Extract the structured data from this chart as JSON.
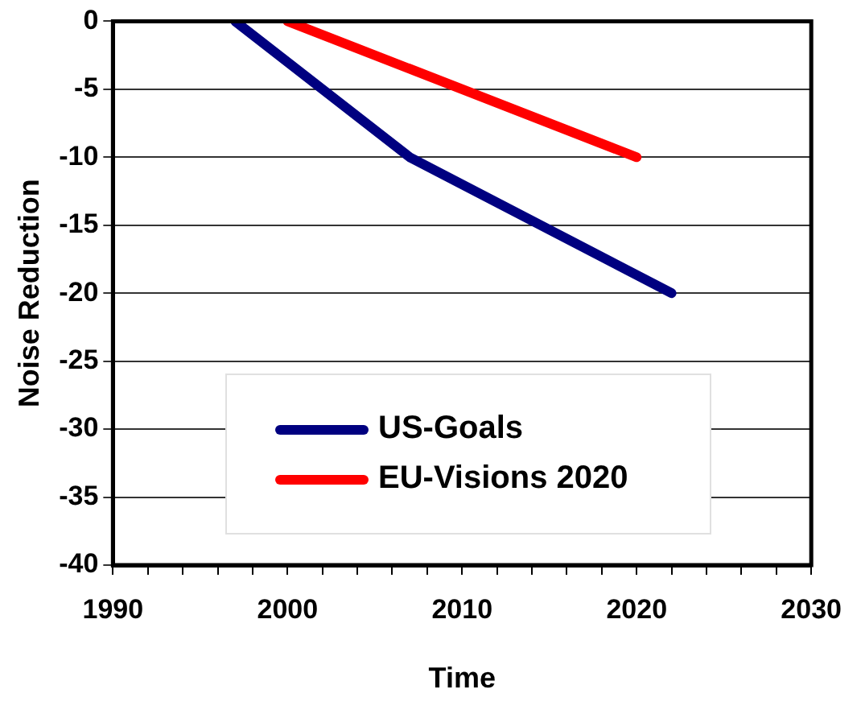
{
  "chart_data": {
    "type": "line",
    "xlabel": "Time",
    "ylabel": "Noise Reduction",
    "xlim": [
      1990,
      2030
    ],
    "ylim": [
      -40,
      0
    ],
    "xticks": [
      1990,
      {
        "value": 1992,
        "label": null
      },
      {
        "value": 1994,
        "label": null
      },
      {
        "value": 1996,
        "label": null
      },
      {
        "value": 1998,
        "label": null
      },
      2000,
      {
        "value": 2002,
        "label": null
      },
      {
        "value": 2004,
        "label": null
      },
      {
        "value": 2006,
        "label": null
      },
      {
        "value": 2008,
        "label": null
      },
      2010,
      {
        "value": 2012,
        "label": null
      },
      {
        "value": 2014,
        "label": null
      },
      {
        "value": 2016,
        "label": null
      },
      {
        "value": 2018,
        "label": null
      },
      2020,
      {
        "value": 2022,
        "label": null
      },
      {
        "value": 2024,
        "label": null
      },
      {
        "value": 2026,
        "label": null
      },
      {
        "value": 2028,
        "label": null
      },
      2030
    ],
    "yticks": [
      -40,
      -35,
      -30,
      -25,
      -20,
      -15,
      -10,
      -5,
      0
    ],
    "grid": "y",
    "legend": "bottom",
    "marker": "none",
    "line_style": "solid",
    "series": [
      {
        "name": "US-Goals",
        "color": "#000080",
        "x": [
          1997,
          2007,
          2022
        ],
        "values": [
          0,
          -10,
          -20
        ]
      },
      {
        "name": "EU-Visions 2020",
        "color": "#ff0000",
        "x": [
          2000,
          2020
        ],
        "values": [
          0,
          -10
        ]
      }
    ]
  }
}
